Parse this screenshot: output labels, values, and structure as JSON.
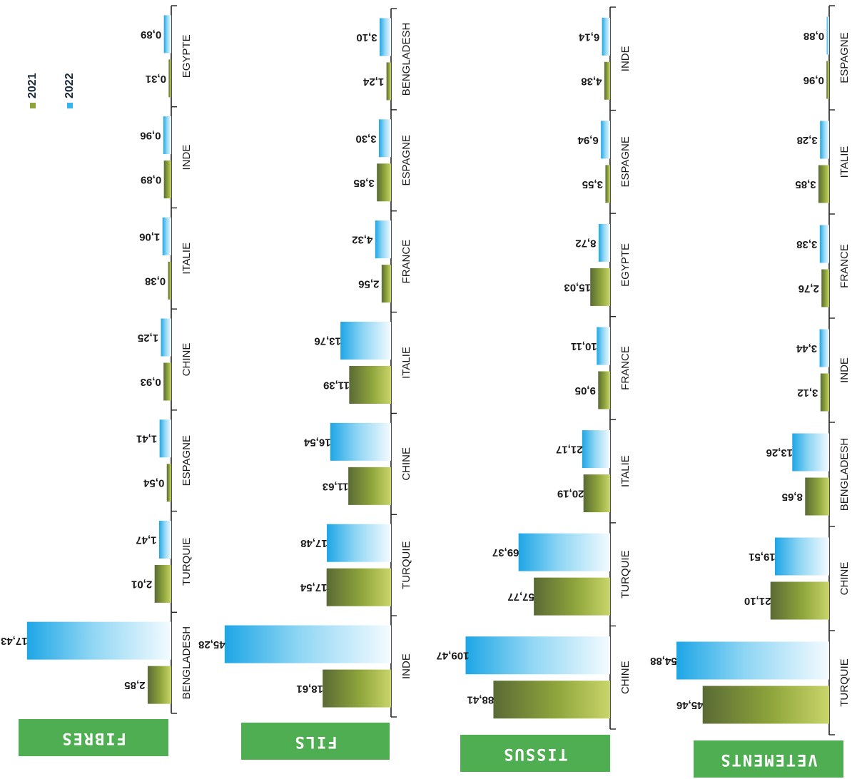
{
  "legend": {
    "items": [
      {
        "label": "2021",
        "color": "#8ea33a"
      },
      {
        "label": "2022",
        "color": "#35b6ea"
      }
    ]
  },
  "colors": {
    "banner": "#4fae52",
    "bar_2021": "#8ea33a",
    "bar_2022": "#35b6ea"
  },
  "chart_data": [
    {
      "type": "bar",
      "title": "FIBRES",
      "categories": [
        "BENGLADESH",
        "TURQUIE",
        "ESPAGNE",
        "CHINE",
        "ITALIE",
        "INDE",
        "EGYPTE"
      ],
      "series": [
        {
          "name": "2021",
          "values": [
            2.85,
            2.01,
            0.54,
            0.93,
            0.38,
            0.89,
            0.31
          ],
          "labels": [
            "2,85",
            "2,01",
            "0,54",
            "0,93",
            "0,38",
            "0,89",
            "0,31"
          ]
        },
        {
          "name": "2022",
          "values": [
            17.43,
            1.47,
            1.41,
            1.25,
            1.06,
            0.96,
            0.89
          ],
          "labels": [
            "17,43",
            "1,47",
            "1,41",
            "1,25",
            "1,06",
            "0,96",
            "0,89"
          ]
        }
      ]
    },
    {
      "type": "bar",
      "title": "FILS",
      "categories": [
        "INDE",
        "TURQUIE",
        "CHINE",
        "ITALIE",
        "FRANCE",
        "ESPAGNE",
        "BENGLADESH"
      ],
      "series": [
        {
          "name": "2021",
          "values": [
            18.61,
            17.54,
            11.63,
            11.39,
            2.56,
            3.85,
            1.24
          ],
          "labels": [
            "18,61",
            "17,54",
            "11,63",
            "11,39",
            "2,56",
            "3,85",
            "1,24"
          ]
        },
        {
          "name": "2022",
          "values": [
            45.28,
            17.48,
            16.54,
            13.76,
            4.32,
            3.3,
            3.1
          ],
          "labels": [
            "45,28",
            "17,48",
            "16,54",
            "13,76",
            "4,32",
            "3,30",
            "3,10"
          ]
        }
      ]
    },
    {
      "type": "bar",
      "title": "TISSUS",
      "categories": [
        "CHINE",
        "TURQUIE",
        "ITALIE",
        "FRANCE",
        "EGYPTE",
        "ESPAGNE",
        "INDE"
      ],
      "series": [
        {
          "name": "2021",
          "values": [
            88.41,
            57.77,
            20.19,
            9.05,
            15.03,
            3.55,
            4.38
          ],
          "labels": [
            "88,41",
            "57,77",
            "20,19",
            "9,05",
            "15,03",
            "3,55",
            "4,38"
          ]
        },
        {
          "name": "2022",
          "values": [
            109.47,
            69.37,
            21.17,
            10.11,
            8.72,
            6.94,
            6.14
          ],
          "labels": [
            "109,47",
            "69,37",
            "21,17",
            "10,11",
            "8,72",
            "6,94",
            "6,14"
          ]
        }
      ]
    },
    {
      "type": "bar",
      "title": "VETEMENTS",
      "categories": [
        "TURQUIE",
        "CHINE",
        "BENGLADESH",
        "INDE",
        "FRANCE",
        "ITALIE",
        "ESPAGNE"
      ],
      "series": [
        {
          "name": "2021",
          "values": [
            45.46,
            21.1,
            8.65,
            3.12,
            2.76,
            3.85,
            0.96
          ],
          "labels": [
            "45,46",
            "21,10",
            "8,65",
            "3,12",
            "2,76",
            "3,85",
            "0,96"
          ]
        },
        {
          "name": "2022",
          "values": [
            54.88,
            19.51,
            13.26,
            3.44,
            3.38,
            3.28,
            0.88
          ],
          "labels": [
            "54,88",
            "19,51",
            "13,26",
            "3,44",
            "3,38",
            "3,28",
            "0,88"
          ]
        }
      ]
    }
  ]
}
